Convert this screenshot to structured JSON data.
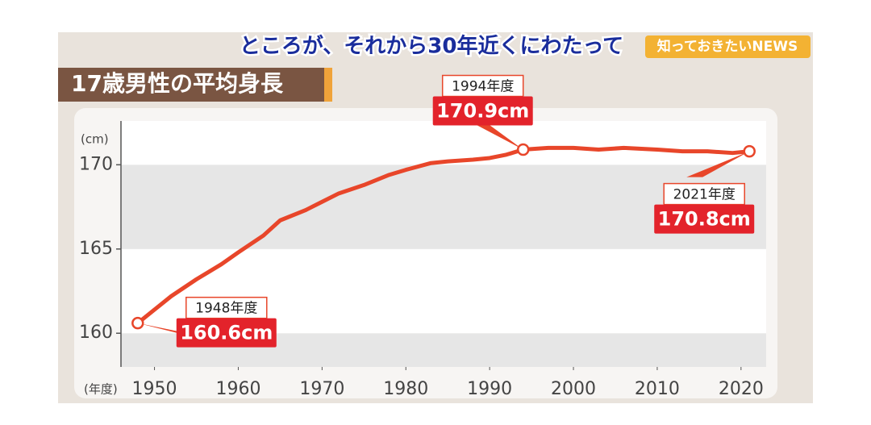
{
  "caption": "ところが、それから30年近くにわたって",
  "logo": "知っておきたいNEWS",
  "chart_data": {
    "type": "line",
    "title": "17歳男性の平均身長",
    "y_unit": "(cm)",
    "x_unit": "(年度)",
    "x": [
      1948,
      1950,
      1952,
      1955,
      1958,
      1960,
      1963,
      1965,
      1968,
      1970,
      1972,
      1975,
      1978,
      1980,
      1983,
      1985,
      1988,
      1990,
      1992,
      1994,
      1997,
      2000,
      2003,
      2006,
      2010,
      2013,
      2016,
      2019,
      2021
    ],
    "values": [
      160.6,
      161.4,
      162.2,
      163.2,
      164.1,
      164.8,
      165.8,
      166.7,
      167.3,
      167.8,
      168.3,
      168.8,
      169.4,
      169.7,
      170.1,
      170.2,
      170.3,
      170.4,
      170.6,
      170.9,
      171.0,
      171.0,
      170.9,
      171.0,
      170.9,
      170.8,
      170.8,
      170.7,
      170.8
    ],
    "color": "#e8462a",
    "xlim": [
      1946,
      2023
    ],
    "xticks": [
      1950,
      1960,
      1970,
      1980,
      1990,
      2000,
      2010,
      2020
    ],
    "ylim": [
      158,
      172.6
    ],
    "yticks": [
      160,
      165,
      170
    ],
    "annotations": [
      {
        "x": 1948,
        "y": 160.6,
        "period": "1948年度",
        "label": "160.6cm"
      },
      {
        "x": 1994,
        "y": 170.9,
        "period": "1994年度",
        "label": "170.9cm"
      },
      {
        "x": 2021,
        "y": 170.8,
        "period": "2021年度",
        "label": "170.8cm"
      }
    ]
  }
}
